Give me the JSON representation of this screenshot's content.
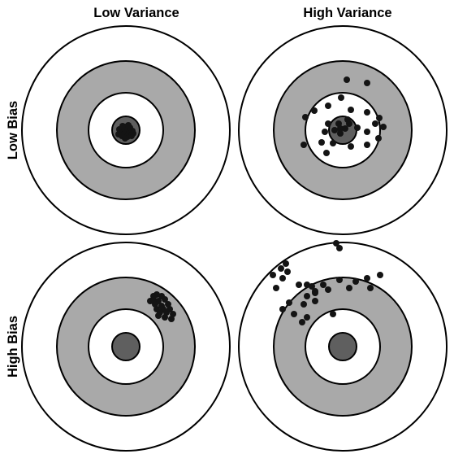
{
  "header": {
    "col_low_variance": "Low Variance",
    "col_high_variance": "High Variance",
    "row_low_bias": "Low Bias",
    "row_high_bias": "High Bias"
  },
  "colors": {
    "ring_stroke": "#000000",
    "ring_white": "#ffffff",
    "ring_gray": "#a9a9a9",
    "bullseye": "#5f5f5f",
    "shot": "#141414"
  },
  "panels": [
    {
      "id": "low-bias-low-variance",
      "row": "Low Bias",
      "column": "Low Variance",
      "shots": [
        [
          -6,
          2
        ],
        [
          -3,
          5
        ],
        [
          0,
          3
        ],
        [
          3,
          6
        ],
        [
          6,
          3
        ],
        [
          -8,
          -1
        ],
        [
          -2,
          -2
        ],
        [
          4,
          0
        ],
        [
          8,
          1
        ],
        [
          -5,
          7
        ],
        [
          2,
          8
        ],
        [
          7,
          7
        ],
        [
          -1,
          10
        ],
        [
          -9,
          5
        ],
        [
          5,
          -3
        ],
        [
          9,
          4
        ],
        [
          0,
          -4
        ],
        [
          -4,
          -5
        ],
        [
          3,
          -6
        ]
      ]
    },
    {
      "id": "low-bias-high-variance",
      "row": "Low Bias",
      "column": "High Variance",
      "shots": [
        [
          5,
          -62
        ],
        [
          30,
          -58
        ],
        [
          -2,
          -40
        ],
        [
          -18,
          -30
        ],
        [
          -35,
          -24
        ],
        [
          10,
          -25
        ],
        [
          30,
          -22
        ],
        [
          45,
          -15
        ],
        [
          -46,
          -16
        ],
        [
          -18,
          -8
        ],
        [
          -5,
          -8
        ],
        [
          6,
          -13
        ],
        [
          40,
          -8
        ],
        [
          50,
          -4
        ],
        [
          -22,
          2
        ],
        [
          -3,
          4
        ],
        [
          18,
          -3
        ],
        [
          30,
          2
        ],
        [
          -48,
          18
        ],
        [
          -26,
          15
        ],
        [
          -12,
          16
        ],
        [
          10,
          20
        ],
        [
          30,
          18
        ],
        [
          44,
          10
        ],
        [
          -20,
          28
        ],
        [
          -10,
          0
        ],
        [
          -3,
          -2
        ],
        [
          3,
          -2
        ],
        [
          8,
          -8
        ]
      ]
    },
    {
      "id": "high-bias-low-variance",
      "row": "High Bias",
      "column": "Low Variance",
      "shots": [
        [
          38,
          -64
        ],
        [
          44,
          -62
        ],
        [
          34,
          -58
        ],
        [
          40,
          -56
        ],
        [
          48,
          -58
        ],
        [
          36,
          -52
        ],
        [
          44,
          -50
        ],
        [
          52,
          -52
        ],
        [
          38,
          -46
        ],
        [
          46,
          -46
        ],
        [
          54,
          -46
        ],
        [
          42,
          -42
        ],
        [
          50,
          -42
        ],
        [
          58,
          -40
        ],
        [
          34,
          -62
        ],
        [
          30,
          -56
        ],
        [
          48,
          -36
        ],
        [
          40,
          -38
        ],
        [
          56,
          -34
        ]
      ]
    },
    {
      "id": "high-bias-high-variance",
      "row": "High Bias",
      "column": "High Variance",
      "shots": [
        [
          -8,
          -127
        ],
        [
          -4,
          -121
        ],
        [
          -70,
          -102
        ],
        [
          -76,
          -96
        ],
        [
          -68,
          -92
        ],
        [
          -86,
          -88
        ],
        [
          -74,
          -84
        ],
        [
          -82,
          -72
        ],
        [
          -54,
          -76
        ],
        [
          -44,
          -76
        ],
        [
          -24,
          -76
        ],
        [
          -4,
          -82
        ],
        [
          16,
          -80
        ],
        [
          30,
          -84
        ],
        [
          46,
          -88
        ],
        [
          34,
          -72
        ],
        [
          8,
          -72
        ],
        [
          -38,
          -74
        ],
        [
          -34,
          -68
        ],
        [
          -18,
          -70
        ],
        [
          -44,
          -62
        ],
        [
          -48,
          -52
        ],
        [
          -66,
          -54
        ],
        [
          -34,
          -56
        ],
        [
          -74,
          -46
        ],
        [
          -60,
          -40
        ],
        [
          -50,
          -30
        ],
        [
          -44,
          -36
        ],
        [
          -12,
          -40
        ],
        [
          -34,
          -66
        ]
      ]
    }
  ]
}
